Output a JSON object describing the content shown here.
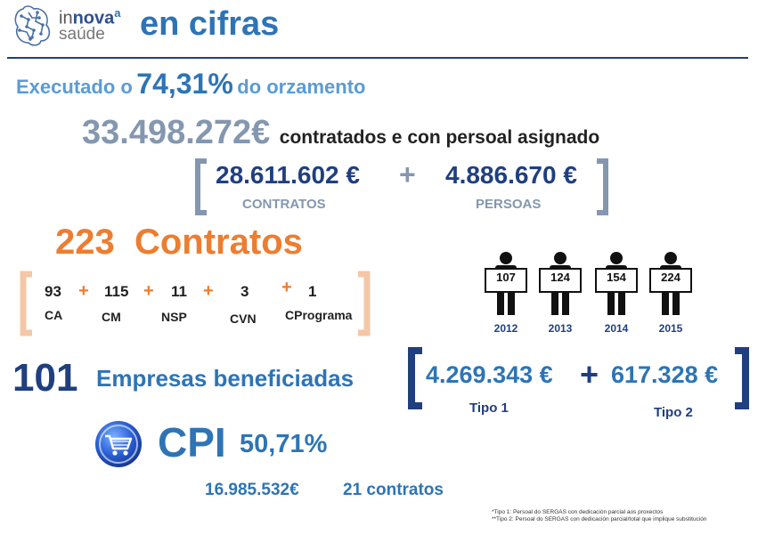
{
  "header": {
    "logo_in": "in",
    "logo_nova": "nova",
    "logo_a": "a",
    "logo_saude": "saúde",
    "title": "en cifras"
  },
  "budget": {
    "prefix": "Executado o",
    "percent": "74,31%",
    "suffix": "do orzamento"
  },
  "total": {
    "amount": "33.498.272€",
    "label": "contratados e con persoal asignado"
  },
  "split": {
    "contracts_amount": "28.611.602 €",
    "plus": "+",
    "persons_amount": "4.886.670 €",
    "contracts_label": "CONTRATOS",
    "persons_label": "PERSOAS"
  },
  "contracts": {
    "count": "223",
    "label": "Contratos",
    "items": [
      {
        "value": "93",
        "label": "CA"
      },
      {
        "value": "115",
        "label": "CM"
      },
      {
        "value": "11",
        "label": "NSP"
      },
      {
        "value": "3",
        "label": "CVN"
      },
      {
        "value": "1",
        "label": "CPrograma"
      }
    ],
    "plus": "+"
  },
  "personnel": [
    {
      "value": "107",
      "year": "2012"
    },
    {
      "value": "124",
      "year": "2013"
    },
    {
      "value": "154",
      "year": "2014"
    },
    {
      "value": "224",
      "year": "2015"
    }
  ],
  "companies": {
    "count": "101",
    "label": "Empresas beneficiadas"
  },
  "types": {
    "type1_amount": "4.269.343 €",
    "plus": "+",
    "type2_amount": "617.328 €",
    "type1_label": "Tipo 1",
    "type2_label": "Tipo 2"
  },
  "cpi": {
    "label": "CPI",
    "percent": "50,71%",
    "amount": "16.985.532€",
    "contracts": "21 contratos"
  },
  "footnotes": {
    "note1": "*Tipo 1: Persoal do SERGAS con dedicación parcial aos proxectos",
    "note2": "**Tipo 2: Persoal do SERGAS con dedicación parcial/total que implique substitución"
  },
  "colors": {
    "navy": "#1f3f7f",
    "blue": "#2e74b5",
    "grey": "#8497b0",
    "orange": "#ed7d31",
    "peach": "#f4c7a6"
  }
}
